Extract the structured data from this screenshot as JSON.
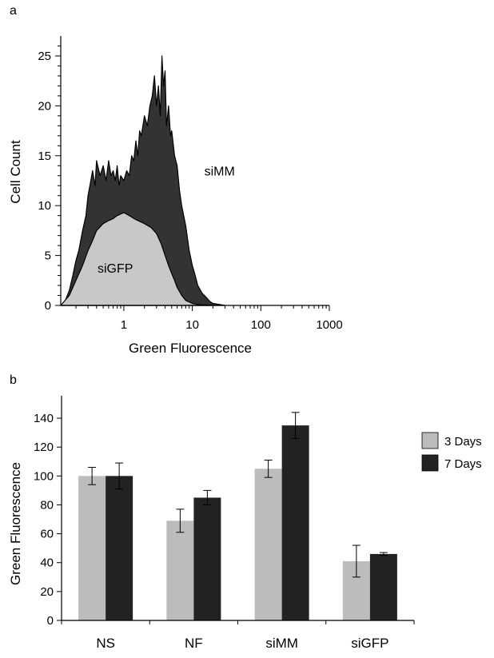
{
  "chart_data": [
    {
      "panel_label": "a",
      "type": "area",
      "x_scale": "log",
      "xlabel": "Green Fluorescence",
      "ylabel": "Cell Count",
      "xlim": [
        0.12,
        1000
      ],
      "ylim": [
        0,
        27
      ],
      "xticks": [
        1,
        10,
        100,
        1000
      ],
      "xtick_labels": [
        "1",
        "10",
        "100",
        "1000"
      ],
      "yticks": [
        0,
        5,
        10,
        15,
        20,
        25
      ],
      "ytick_labels": [
        "0",
        "5",
        "10",
        "15",
        "20",
        "25"
      ],
      "colors": {
        "siGFP": "#c8c8c8",
        "siMM": "#333333"
      },
      "series": [
        {
          "name": "siGFP",
          "x": [
            0.12,
            0.16,
            0.2,
            0.25,
            0.3,
            0.35,
            0.4,
            0.5,
            0.6,
            0.7,
            0.8,
            1.0,
            1.2,
            1.5,
            2.0,
            2.5,
            3.0,
            3.5,
            4.0,
            4.5,
            5.0,
            5.5,
            6.0,
            7.0,
            8.0,
            10.0,
            12.0,
            15.0,
            20.0
          ],
          "values": [
            0,
            1.0,
            2.5,
            4.0,
            5.5,
            6.5,
            7.5,
            8.2,
            8.5,
            8.7,
            9.0,
            9.3,
            9.0,
            8.6,
            8.2,
            7.8,
            7.2,
            6.2,
            5.0,
            4.0,
            3.2,
            2.5,
            1.8,
            1.0,
            0.5,
            0.2,
            0.1,
            0.05,
            0
          ]
        },
        {
          "name": "siMM",
          "x": [
            0.12,
            0.14,
            0.16,
            0.18,
            0.2,
            0.22,
            0.25,
            0.28,
            0.3,
            0.33,
            0.35,
            0.38,
            0.4,
            0.45,
            0.5,
            0.55,
            0.6,
            0.65,
            0.7,
            0.75,
            0.8,
            0.85,
            0.9,
            1.0,
            1.1,
            1.2,
            1.3,
            1.4,
            1.5,
            1.6,
            1.7,
            1.8,
            2.0,
            2.2,
            2.4,
            2.6,
            2.8,
            3.0,
            3.2,
            3.4,
            3.6,
            3.8,
            4.0,
            4.2,
            4.5,
            4.8,
            5.0,
            5.5,
            6.0,
            6.5,
            7.0,
            8.0,
            9.0,
            10.0,
            11.0,
            12.0,
            14.0,
            16.0,
            18.0,
            20.0,
            25.0,
            30.0
          ],
          "values": [
            0,
            0.5,
            1.5,
            3.0,
            4.5,
            5.5,
            7.5,
            9.0,
            11.0,
            12.5,
            13.5,
            12.0,
            14.5,
            13.0,
            14.0,
            12.5,
            14.5,
            13.0,
            13.5,
            12.5,
            14.0,
            12.0,
            13.0,
            12.5,
            13.5,
            13.0,
            15.0,
            14.5,
            16.5,
            15.0,
            17.5,
            17.0,
            19.0,
            18.0,
            20.0,
            21.0,
            23.0,
            20.0,
            22.0,
            19.0,
            25.0,
            22.0,
            23.5,
            18.0,
            20.0,
            17.0,
            17.5,
            15.0,
            14.0,
            11.5,
            10.0,
            8.0,
            5.5,
            4.0,
            3.0,
            2.0,
            1.2,
            0.8,
            0.4,
            0.2,
            0.1,
            0
          ]
        }
      ],
      "annotations": [
        {
          "text": "siMM",
          "x": 25,
          "y": 13
        },
        {
          "text": "siGFP",
          "x": 0.75,
          "y": 3.3
        }
      ]
    },
    {
      "panel_label": "b",
      "type": "bar",
      "xlabel": "",
      "ylabel": "Green Fluorescence",
      "categories": [
        "NS",
        "NF",
        "siMM",
        "siGFP"
      ],
      "ylim": [
        0,
        150
      ],
      "yticks": [
        0,
        20,
        40,
        60,
        80,
        100,
        120,
        140
      ],
      "ytick_labels": [
        "0",
        "20",
        "40",
        "60",
        "80",
        "100",
        "120",
        "140"
      ],
      "legend_position": "right",
      "series": [
        {
          "name": "3 Days",
          "color": "#bcbcbc",
          "values": [
            100,
            69,
            105,
            41
          ],
          "errors": [
            6,
            8,
            6,
            11
          ]
        },
        {
          "name": "7 Days",
          "color": "#222222",
          "values": [
            100,
            85,
            135,
            46
          ],
          "errors": [
            9,
            5,
            9,
            1
          ]
        }
      ]
    }
  ]
}
